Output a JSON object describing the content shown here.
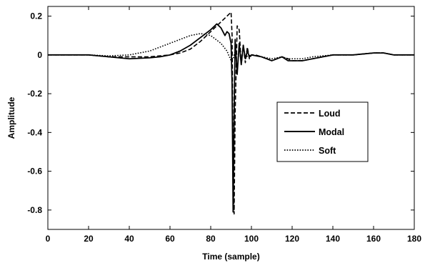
{
  "chart_data": {
    "type": "line",
    "title": "",
    "xlabel": "Time (sample)",
    "ylabel": "Amplitude",
    "xlim": [
      0,
      180
    ],
    "ylim": [
      -0.9,
      0.25
    ],
    "xticks": [
      0,
      20,
      40,
      60,
      80,
      100,
      120,
      140,
      160,
      180
    ],
    "yticks": [
      0.2,
      0,
      -0.2,
      -0.4,
      -0.6,
      -0.8
    ],
    "ytick_labels": [
      "0.2",
      "0",
      "-0.2",
      "-0.4",
      "-0.6",
      "-0.8"
    ],
    "grid": false,
    "legend_position": "center-right",
    "series": [
      {
        "name": "Loud",
        "style": "dashed",
        "x": [
          0,
          10,
          20,
          30,
          40,
          50,
          55,
          60,
          65,
          70,
          75,
          80,
          83,
          85,
          87,
          89,
          90,
          90.5,
          91,
          91.5,
          92,
          93,
          94,
          95,
          96,
          97,
          98,
          99,
          100,
          102,
          105,
          110,
          115,
          118,
          120,
          125,
          130,
          140,
          150,
          160,
          165,
          170,
          180
        ],
        "y": [
          0.0,
          0.0,
          0.0,
          -0.01,
          -0.01,
          -0.01,
          -0.005,
          0.0,
          0.01,
          0.03,
          0.07,
          0.12,
          0.15,
          0.17,
          0.19,
          0.21,
          0.22,
          0.1,
          -0.6,
          -0.82,
          -0.3,
          0.15,
          0.13,
          -0.05,
          0.05,
          -0.04,
          0.04,
          -0.02,
          0.0,
          0.0,
          -0.01,
          -0.03,
          -0.01,
          -0.02,
          -0.03,
          -0.03,
          -0.02,
          0.0,
          0.0,
          0.01,
          0.01,
          0.0,
          0.0
        ]
      },
      {
        "name": "Modal",
        "style": "solid",
        "x": [
          0,
          10,
          20,
          30,
          40,
          50,
          55,
          60,
          65,
          70,
          75,
          80,
          83,
          85,
          87,
          88,
          89,
          90,
          90.5,
          91,
          91.5,
          92,
          93,
          94,
          95,
          96,
          97,
          98,
          99,
          100,
          105,
          110,
          115,
          118,
          120,
          125,
          130,
          140,
          150,
          160,
          165,
          170,
          180
        ],
        "y": [
          0.0,
          0.0,
          0.0,
          -0.01,
          -0.02,
          -0.015,
          -0.01,
          0.0,
          0.02,
          0.05,
          0.09,
          0.13,
          0.16,
          0.14,
          0.1,
          0.12,
          0.11,
          0.06,
          -0.15,
          -0.81,
          -0.3,
          0.08,
          -0.1,
          0.06,
          -0.05,
          0.05,
          -0.02,
          0.02,
          -0.01,
          0.0,
          -0.01,
          -0.03,
          -0.01,
          -0.03,
          -0.03,
          -0.03,
          -0.02,
          0.0,
          0.0,
          0.01,
          0.01,
          0.0,
          0.0
        ]
      },
      {
        "name": "Soft",
        "style": "dotted",
        "x": [
          0,
          10,
          20,
          30,
          40,
          45,
          50,
          55,
          60,
          65,
          70,
          75,
          80,
          85,
          88,
          90,
          91,
          92,
          93,
          94,
          95,
          97,
          100,
          105,
          110,
          115,
          118,
          120,
          125,
          130,
          140,
          150,
          160,
          165,
          170,
          180
        ],
        "y": [
          0.0,
          0.0,
          0.0,
          -0.005,
          0.0,
          0.01,
          0.02,
          0.04,
          0.06,
          0.08,
          0.1,
          0.11,
          0.1,
          0.06,
          0.02,
          -0.03,
          -0.02,
          0.02,
          0.0,
          -0.01,
          0.0,
          -0.01,
          0.0,
          -0.01,
          -0.02,
          -0.01,
          -0.02,
          -0.02,
          -0.02,
          -0.01,
          0.0,
          0.0,
          0.01,
          0.01,
          0.0,
          0.0
        ]
      }
    ]
  }
}
